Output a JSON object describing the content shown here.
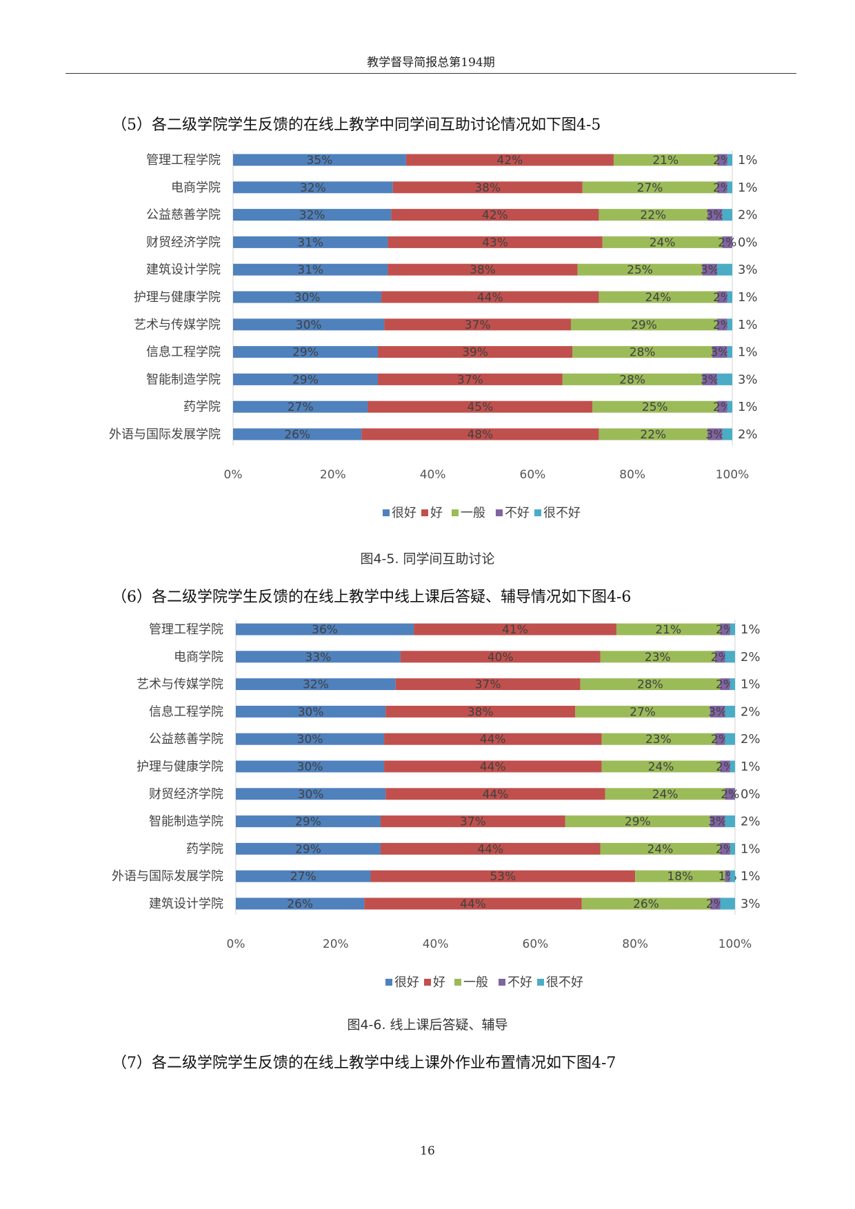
{
  "header": {
    "title": "教学督导简报总第194期"
  },
  "sections": [
    {
      "heading": "（5）各二级学院学生反馈的在线上教学中同学间互助讨论情况如下图4-5"
    },
    {
      "heading": "（6）各二级学院学生反馈的在线上教学中线上课后答疑、辅导情况如下图4-6"
    },
    {
      "heading": "（7）各二级学院学生反馈的在线上教学中线上课外作业布置情况如下图4-7"
    }
  ],
  "captions": [
    "图4-5. 同学间互助讨论",
    "图4-6. 线上课后答疑、辅导"
  ],
  "page_number": "16",
  "chart_data": [
    {
      "type": "bar",
      "orientation": "horizontal",
      "stacked": "percent",
      "categories": [
        "管理工程学院",
        "电商学院",
        "公益慈善学院",
        "财贸经济学院",
        "建筑设计学院",
        "护理与健康学院",
        "艺术与传媒学院",
        "信息工程学院",
        "智能制造学院",
        "药学院",
        "外语与国际发展学院"
      ],
      "series": [
        {
          "name": "很好",
          "color": "#4f81bd",
          "values": [
            35,
            32,
            32,
            31,
            31,
            30,
            30,
            29,
            29,
            27,
            26
          ]
        },
        {
          "name": "好",
          "color": "#c0504d",
          "values": [
            42,
            38,
            42,
            43,
            38,
            44,
            37,
            39,
            37,
            45,
            48
          ]
        },
        {
          "name": "一般",
          "color": "#9bbb59",
          "values": [
            21,
            27,
            22,
            24,
            25,
            24,
            29,
            28,
            28,
            25,
            22
          ]
        },
        {
          "name": "不好",
          "color": "#8064a2",
          "values": [
            2,
            2,
            3,
            2,
            3,
            2,
            2,
            3,
            3,
            2,
            3
          ]
        },
        {
          "name": "很不好",
          "color": "#4bacc6",
          "values": [
            1,
            1,
            2,
            0,
            3,
            1,
            1,
            1,
            3,
            1,
            2
          ]
        }
      ],
      "x_ticks": [
        "0%",
        "20%",
        "40%",
        "60%",
        "80%",
        "100%"
      ],
      "xlim": [
        0,
        100
      ],
      "legend": "bottom",
      "grid": false
    },
    {
      "type": "bar",
      "orientation": "horizontal",
      "stacked": "percent",
      "categories": [
        "管理工程学院",
        "电商学院",
        "艺术与传媒学院",
        "信息工程学院",
        "公益慈善学院",
        "护理与健康学院",
        "财贸经济学院",
        "智能制造学院",
        "药学院",
        "外语与国际发展学院",
        "建筑设计学院"
      ],
      "series": [
        {
          "name": "很好",
          "color": "#4f81bd",
          "values": [
            36,
            33,
            32,
            30,
            30,
            30,
            30,
            29,
            29,
            27,
            26
          ]
        },
        {
          "name": "好",
          "color": "#c0504d",
          "values": [
            41,
            40,
            37,
            38,
            44,
            44,
            44,
            37,
            44,
            53,
            44
          ]
        },
        {
          "name": "一般",
          "color": "#9bbb59",
          "values": [
            21,
            23,
            28,
            27,
            23,
            24,
            24,
            29,
            24,
            18,
            26
          ]
        },
        {
          "name": "不好",
          "color": "#8064a2",
          "values": [
            2,
            2,
            2,
            3,
            2,
            2,
            2,
            3,
            2,
            1,
            2
          ]
        },
        {
          "name": "很不好",
          "color": "#4bacc6",
          "values": [
            1,
            2,
            1,
            2,
            2,
            1,
            0,
            2,
            1,
            1,
            3
          ]
        }
      ],
      "x_ticks": [
        "0%",
        "20%",
        "40%",
        "60%",
        "80%",
        "100%"
      ],
      "xlim": [
        0,
        100
      ],
      "legend": "bottom",
      "grid": false
    }
  ]
}
